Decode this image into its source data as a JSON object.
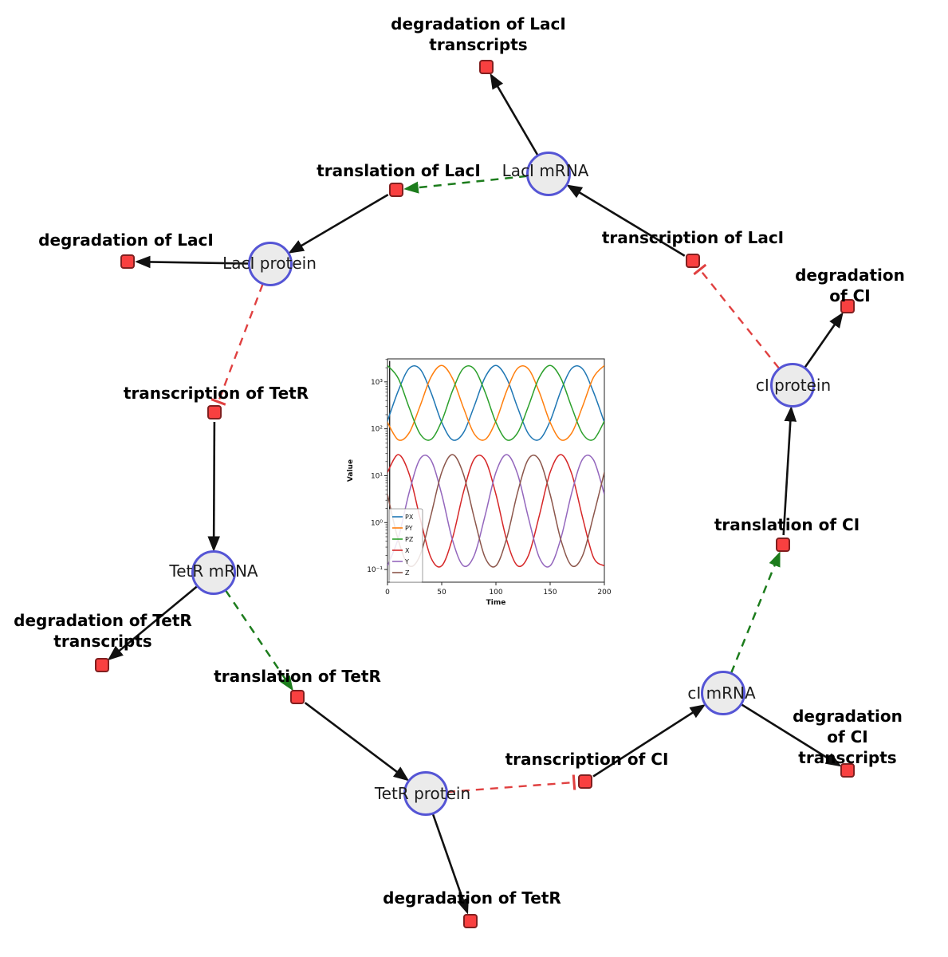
{
  "diagram": {
    "species": [
      {
        "label": "LacI mRNA"
      },
      {
        "label": "LacI protein"
      },
      {
        "label": "cI protein"
      },
      {
        "label": "TetR mRNA"
      },
      {
        "label": "cI mRNA"
      },
      {
        "label": "TetR protein"
      }
    ],
    "reactions": [
      {
        "label": "degradation of LacI\ntranscripts"
      },
      {
        "label": "translation of LacI"
      },
      {
        "label": "transcription of LacI"
      },
      {
        "label": "degradation of LacI"
      },
      {
        "label": "degradation of CI"
      },
      {
        "label": "transcription of TetR"
      },
      {
        "label": "translation of CI"
      },
      {
        "label": "degradation of TetR\ntranscripts"
      },
      {
        "label": "translation of TetR"
      },
      {
        "label": "transcription of CI"
      },
      {
        "label": "degradation of CI\ntranscripts"
      },
      {
        "label": "degradation of TetR"
      }
    ],
    "colors": {
      "species_fill": "#ebebeb",
      "species_border": "#5555d5",
      "reaction_fill": "#f94040",
      "reaction_border": "#802020",
      "edge": "#111111",
      "modifier_edge": "#1c7c1c",
      "inhibition_edge": "#e04040"
    }
  },
  "chart_data": {
    "type": "line",
    "title": "",
    "xlabel": "Time",
    "ylabel": "Value",
    "y_scale": "log",
    "xlim": [
      0,
      200
    ],
    "ylim_log10": [
      -1.27,
      3.49
    ],
    "x_ticks": [
      0,
      50,
      100,
      150,
      200
    ],
    "y_tick_labels": [
      "10⁻¹",
      "10⁰",
      "10¹",
      "10²",
      "10³"
    ],
    "legend_position": "lower left",
    "grid": false,
    "x": [
      0,
      10,
      20,
      30,
      40,
      50,
      60,
      70,
      80,
      90,
      100,
      110,
      120,
      130,
      140,
      150,
      160,
      170,
      180,
      190,
      200
    ],
    "series": [
      {
        "name": "PX",
        "color": "#1f77b4",
        "values": [
          146,
          650,
          1940,
          1880,
          604,
          137,
          58,
          82,
          304,
          1250,
          2240,
          1180,
          282,
          78,
          59,
          146,
          650,
          1940,
          1880,
          604,
          137
        ]
      },
      {
        "name": "PY",
        "color": "#ff7f0e",
        "values": [
          137,
          58,
          82,
          304,
          1250,
          2240,
          1180,
          282,
          78,
          59,
          146,
          650,
          1940,
          1880,
          604,
          137,
          58,
          82,
          304,
          1250,
          2240
        ]
      },
      {
        "name": "PZ",
        "color": "#2ca02c",
        "values": [
          2240,
          1180,
          282,
          78,
          59,
          146,
          650,
          1940,
          1880,
          604,
          137,
          58,
          82,
          304,
          1250,
          2240,
          1180,
          282,
          78,
          59,
          146
        ]
      },
      {
        "name": "X",
        "color": "#d62728",
        "values": [
          11.8,
          28.2,
          10.8,
          1.26,
          0.18,
          0.12,
          0.47,
          4.4,
          22.7,
          21.7,
          4.0,
          0.42,
          0.12,
          0.2,
          1.41,
          11.8,
          28.2,
          10.8,
          1.26,
          0.18,
          0.12
        ]
      },
      {
        "name": "Y",
        "color": "#9467bd",
        "values": [
          0.12,
          0.47,
          4.4,
          22.7,
          21.7,
          4.0,
          0.42,
          0.12,
          0.2,
          1.41,
          11.8,
          28.2,
          10.8,
          1.26,
          0.18,
          0.12,
          0.47,
          4.4,
          22.7,
          21.7,
          4.0
        ]
      },
      {
        "name": "Z",
        "color": "#8c564b",
        "values": [
          4.0,
          0.42,
          0.12,
          0.2,
          1.41,
          11.8,
          28.2,
          10.8,
          1.26,
          0.18,
          0.12,
          0.47,
          4.4,
          22.7,
          21.7,
          4.0,
          0.42,
          0.12,
          0.2,
          1.41,
          11.8
        ]
      }
    ],
    "initial_spike": {
      "t": 2,
      "from": 0.06,
      "to": 2800
    }
  }
}
